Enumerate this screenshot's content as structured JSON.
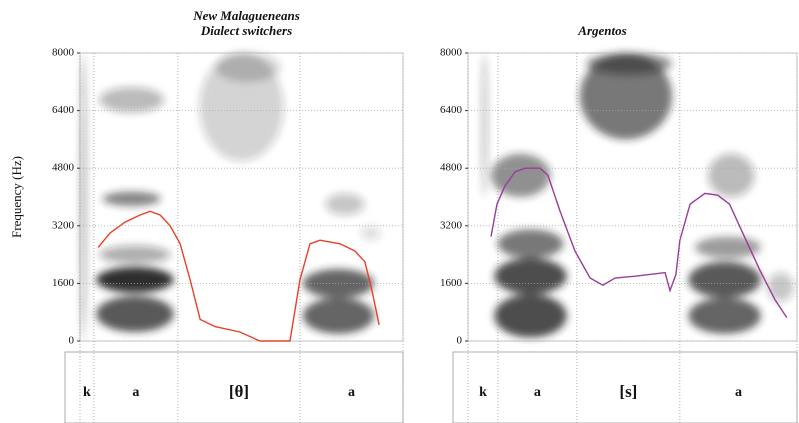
{
  "chart_data": [
    {
      "type": "line",
      "title": "New Malagueneans",
      "subtitle": "Dialect switchers",
      "y_label": "Frequency (Hz)",
      "ylim": [
        0,
        8000
      ],
      "yticks": [
        0,
        1600,
        3200,
        4800,
        6400,
        8000
      ],
      "xlim": [
        0,
        100
      ],
      "grid": true,
      "series": [
        {
          "color": "#e8402a",
          "x": [
            5.6,
            9.3,
            13.9,
            18.6,
            21.7,
            24.8,
            27.9,
            31,
            34.1,
            37.2,
            41.8,
            49.5,
            55.7,
            65,
            68.1,
            71.2,
            74.3,
            80.5,
            85.1,
            88.2,
            90.4,
            92.6
          ],
          "values": [
            2600,
            3000,
            3300,
            3500,
            3600,
            3500,
            3200,
            2700,
            1700,
            600,
            400,
            250,
            0,
            0,
            1700,
            2700,
            2800,
            2700,
            2500,
            2200,
            1400,
            450
          ]
        }
      ],
      "segments": [
        "k",
        "a",
        "[θ]",
        "a"
      ],
      "boundaries": [
        0,
        4.3,
        30.3,
        68.1,
        100
      ]
    },
    {
      "type": "line",
      "title": "Argentos",
      "ylim": [
        0,
        8000
      ],
      "yticks": [
        0,
        1600,
        3200,
        4800,
        6400,
        8000
      ],
      "xlim": [
        0,
        100
      ],
      "grid": true,
      "series": [
        {
          "color": "#9a3c9a",
          "x": [
            7.0,
            8.8,
            11.2,
            14.3,
            17.3,
            21.9,
            24.3,
            28,
            32.5,
            37.1,
            41,
            44.7,
            50.8,
            55.3,
            59.9,
            61.4,
            63.2,
            64.4,
            67.5,
            72,
            75.9,
            79.5,
            84,
            88.8,
            93.3,
            96.9
          ],
          "values": [
            2900,
            3800,
            4300,
            4700,
            4800,
            4800,
            4600,
            3600,
            2500,
            1750,
            1550,
            1750,
            1800,
            1850,
            1900,
            1400,
            1850,
            2800,
            3800,
            4100,
            4050,
            3800,
            2900,
            1950,
            1150,
            650
          ]
        }
      ],
      "segments": [
        "k",
        "a",
        "[s]",
        "a"
      ],
      "boundaries": [
        0,
        9.1,
        33.1,
        64.4,
        100
      ]
    }
  ]
}
